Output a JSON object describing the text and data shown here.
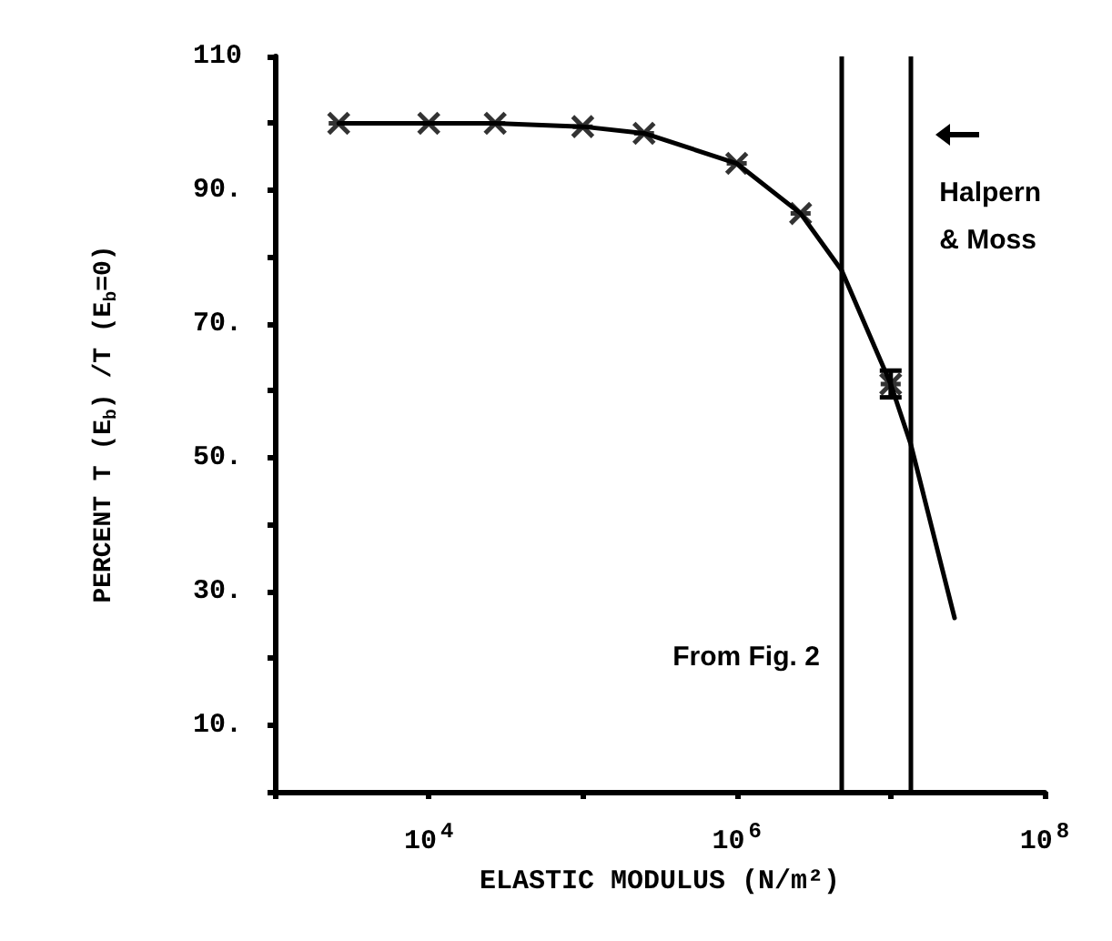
{
  "chart_data": {
    "type": "scatter",
    "xlabel": "ELASTIC MODULUS (N/m²)",
    "ylabel": "PERCENT T (E$_{b}$) /T (E$_{b}$=0)",
    "log": "x",
    "xlim": [
      1000,
      100000000
    ],
    "xticks": [
      {
        "value": 1000,
        "label": null
      },
      {
        "value": 10000,
        "label": "10$^{4}$"
      },
      {
        "value": 100000,
        "label": null
      },
      {
        "value": 1000000,
        "label": "10$^{6}$"
      },
      {
        "value": 10000000,
        "label": null
      },
      {
        "value": 100000000,
        "label": "10$^{8}$"
      }
    ],
    "ylim": [
      0,
      110
    ],
    "yticks": [
      {
        "value": 0,
        "label": null
      },
      {
        "value": 10,
        "label": "10."
      },
      {
        "value": 20,
        "label": null
      },
      {
        "value": 30,
        "label": "30."
      },
      {
        "value": 40,
        "label": null
      },
      {
        "value": 50,
        "label": "50."
      },
      {
        "value": 60,
        "label": null
      },
      {
        "value": 70,
        "label": "70."
      },
      {
        "value": 80,
        "label": null
      },
      {
        "value": 90,
        "label": "90."
      },
      {
        "value": 100,
        "label": null
      },
      {
        "value": 110,
        "label": "110"
      }
    ],
    "series": [
      {
        "color": "#000000",
        "marker": "cross",
        "x": [
          2600,
          10000,
          27000,
          100000,
          250000,
          1000000,
          2600000,
          10000000
        ],
        "values": [
          100,
          100,
          100,
          99.5,
          98.5,
          94,
          86.5,
          61
        ],
        "errors": [
          null,
          null,
          null,
          null,
          null,
          null,
          null,
          2
        ]
      },
      {
        "type": "line",
        "color": "#000000",
        "marker": "none",
        "line_style": "solid",
        "x": [
          2600,
          10000,
          27000,
          100000,
          250000,
          1000000,
          2600000,
          4800000,
          10000000,
          13500000,
          26000000
        ],
        "values": [
          100,
          100,
          100,
          99.5,
          98.5,
          94,
          86.5,
          78,
          61,
          52,
          26
        ]
      }
    ],
    "ref_lines": [
      {
        "axis": "x",
        "value": 4800000,
        "label": "From Fig. 2",
        "color": "#000000"
      },
      {
        "axis": "x",
        "value": 13400000,
        "label": "Halpern & Moss",
        "color": "#000000"
      }
    ]
  }
}
